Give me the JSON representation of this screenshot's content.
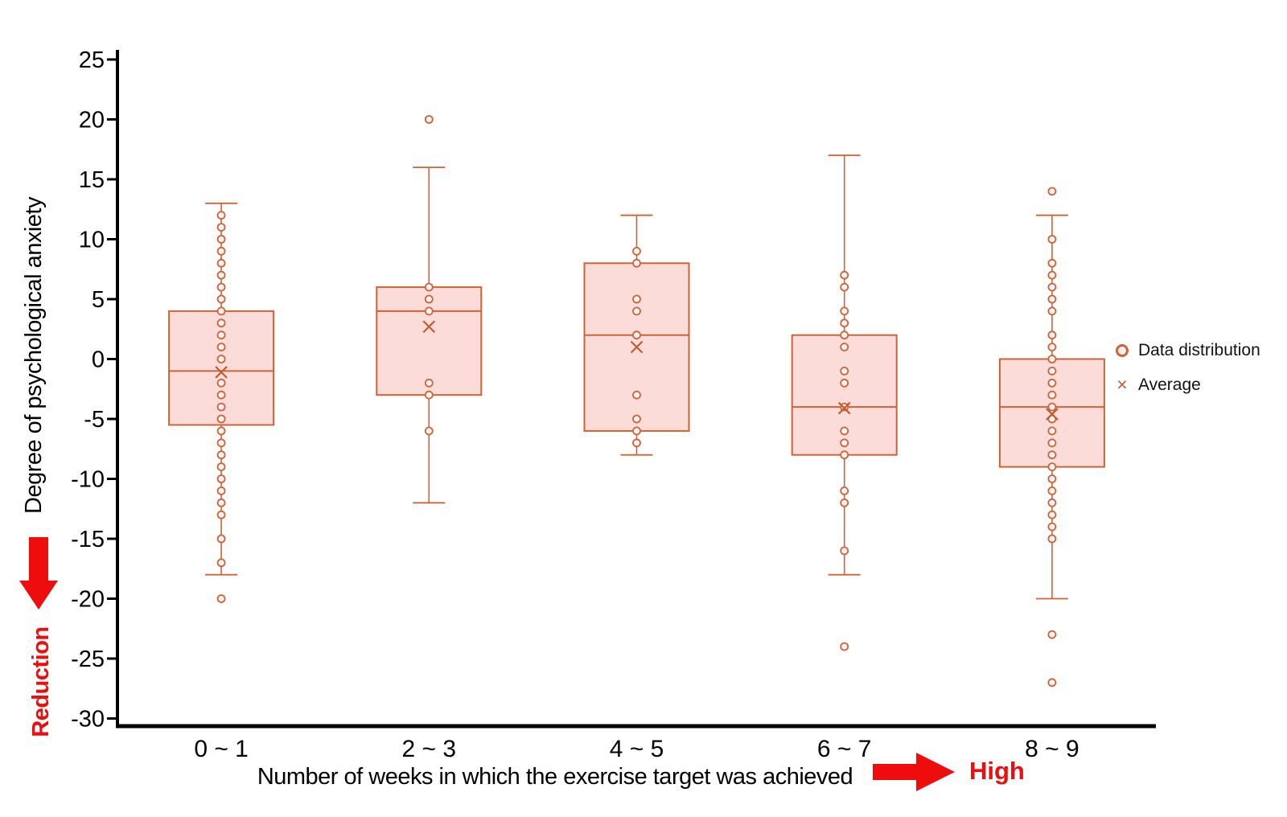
{
  "page": {
    "background": "#ffffff"
  },
  "chart_data": {
    "type": "boxplot",
    "title": "",
    "xlabel": "Number of weeks in which the exercise target was achieved",
    "ylabel": "Degree of psychological anxiety",
    "ylim": [
      -30,
      25
    ],
    "ytick_step": 5,
    "grid": false,
    "legend_position": "right",
    "categories": [
      "0 ~ 1",
      "2 ~ 3",
      "4 ~ 5",
      "6 ~ 7",
      "8 ~ 9"
    ],
    "legend": [
      {
        "label": "Data distribution",
        "marker": "circle"
      },
      {
        "label": "Average",
        "marker": "x"
      }
    ],
    "boxes": [
      {
        "category": "0 ~ 1",
        "q1": -5.5,
        "median": -1,
        "q3": 4,
        "whisker_low": -18,
        "whisker_high": 13,
        "mean": -1.1,
        "points": [
          12,
          11,
          10,
          9,
          8,
          7,
          6,
          5,
          4,
          3,
          2,
          1,
          0,
          -2,
          -3,
          -4,
          -5,
          -6,
          -7,
          -8,
          -9,
          -10,
          -11,
          -12,
          -13,
          -15,
          -17,
          -20
        ]
      },
      {
        "category": "2 ~ 3",
        "q1": -3,
        "median": 4,
        "q3": 6,
        "whisker_low": -12,
        "whisker_high": 16,
        "mean": 2.7,
        "points": [
          20,
          6,
          5,
          4,
          -2,
          -3,
          -6
        ]
      },
      {
        "category": "4 ~ 5",
        "q1": -6,
        "median": 2,
        "q3": 8,
        "whisker_low": -8,
        "whisker_high": 12,
        "mean": 1,
        "points": [
          9,
          8,
          5,
          4,
          2,
          -3,
          -5,
          -6,
          -7
        ]
      },
      {
        "category": "6 ~ 7",
        "q1": -8,
        "median": -4,
        "q3": 2,
        "whisker_low": -18,
        "whisker_high": 17,
        "mean": -4.1,
        "points": [
          7,
          6,
          4,
          3,
          2,
          1,
          -1,
          -2,
          -4,
          -6,
          -7,
          -8,
          -11,
          -12,
          -16,
          -24
        ]
      },
      {
        "category": "8 ~ 9",
        "q1": -9,
        "median": -4,
        "q3": 0,
        "whisker_low": -20,
        "whisker_high": 12,
        "mean": -4.6,
        "points": [
          14,
          10,
          8,
          7,
          6,
          5,
          4,
          2,
          1,
          0,
          -1,
          -2,
          -3,
          -4,
          -5,
          -6,
          -7,
          -8,
          -9,
          -10,
          -11,
          -12,
          -13,
          -14,
          -15,
          -23,
          -27
        ]
      }
    ],
    "colors": {
      "box_fill": "#fcdcd9",
      "box_stroke": "#cc6339",
      "point_stroke": "#cc6339",
      "point_fill": "#fdf1ef",
      "mean_stroke": "#c25a31",
      "axis": "#000000",
      "annotation_red": "#ee0c0c"
    }
  },
  "annotations": {
    "reduction_label": "Reduction",
    "high_label": "High"
  }
}
